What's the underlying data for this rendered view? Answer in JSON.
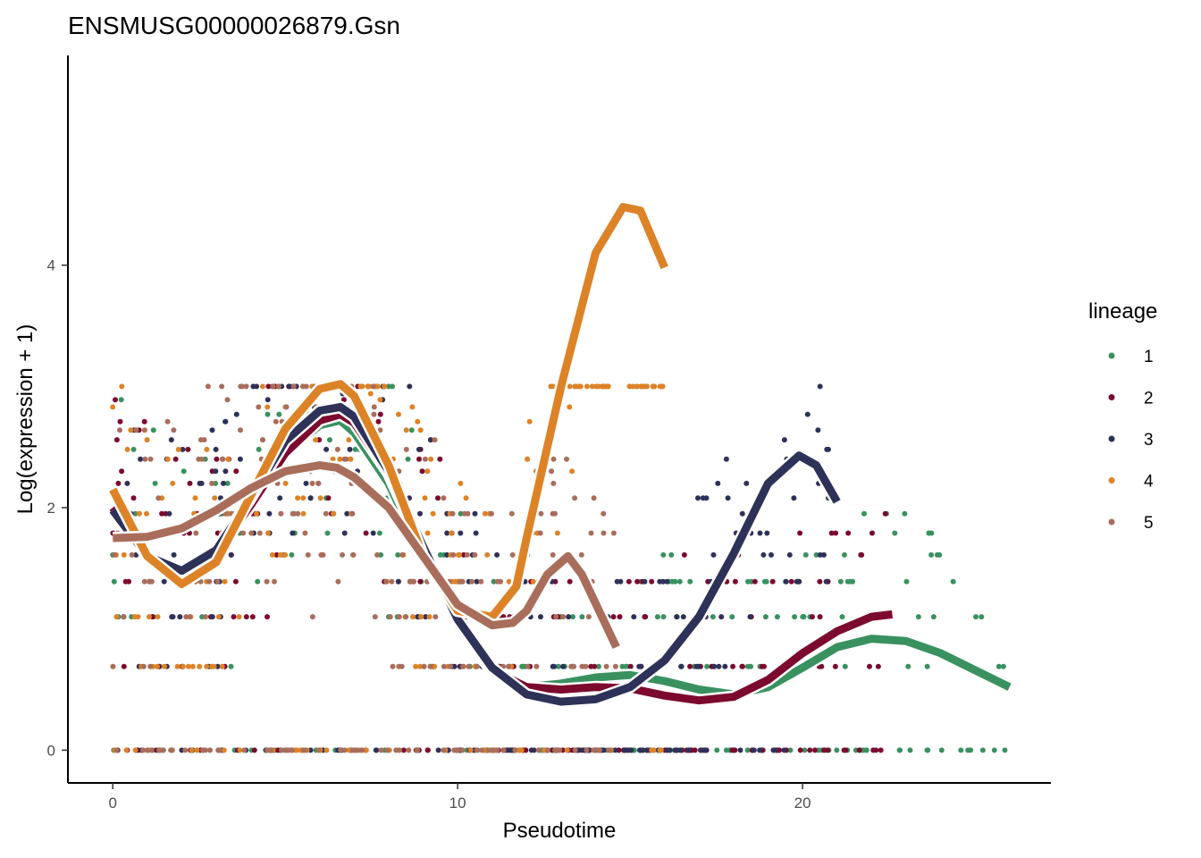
{
  "chart_data": {
    "type": "scatter",
    "title": "ENSMUSG00000026879.Gsn",
    "xlabel": "Pseudotime",
    "ylabel": "Log(expression + 1)",
    "xlim": [
      -1.3,
      27.2
    ],
    "ylim": [
      -0.27,
      5.73
    ],
    "x_ticks": [
      0,
      10,
      20
    ],
    "y_ticks": [
      0,
      2,
      4
    ],
    "grid": false,
    "legend": {
      "title": "lineage",
      "position": "right",
      "entries": [
        "1",
        "2",
        "3",
        "4",
        "5"
      ]
    },
    "expression_levels": [
      0,
      0.69,
      1.1,
      1.39,
      1.61,
      1.79,
      1.95,
      2.08,
      2.2,
      2.3,
      2.4,
      2.48,
      2.56,
      2.64,
      2.71,
      2.77,
      2.83,
      2.89,
      2.94,
      3.0
    ],
    "series": [
      {
        "name": "1",
        "color": "#3a9160",
        "x_range": [
          0,
          26
        ],
        "smooth": {
          "x": [
            0,
            1,
            2,
            3,
            4,
            5,
            6,
            6.6,
            7,
            8,
            9,
            10,
            11,
            12,
            13,
            14,
            15,
            16,
            17,
            18,
            19,
            20,
            21,
            22,
            23,
            24,
            25,
            26
          ],
          "y": [
            2.0,
            1.62,
            1.47,
            1.62,
            2.02,
            2.45,
            2.68,
            2.72,
            2.62,
            2.2,
            1.6,
            1.02,
            0.65,
            0.52,
            0.55,
            0.6,
            0.62,
            0.57,
            0.5,
            0.46,
            0.52,
            0.68,
            0.85,
            0.92,
            0.9,
            0.8,
            0.66,
            0.52
          ]
        }
      },
      {
        "name": "2",
        "color": "#7c0a2e",
        "x_range": [
          0,
          22.6
        ],
        "smooth": {
          "x": [
            0,
            1,
            2,
            3,
            4,
            5,
            6,
            6.6,
            7,
            8,
            9,
            10,
            11,
            12,
            13,
            14,
            15,
            16,
            17,
            18,
            19,
            20,
            21,
            22,
            22.6
          ],
          "y": [
            2.0,
            1.62,
            1.47,
            1.62,
            2.02,
            2.45,
            2.72,
            2.77,
            2.7,
            2.28,
            1.65,
            1.05,
            0.66,
            0.52,
            0.5,
            0.52,
            0.51,
            0.45,
            0.41,
            0.44,
            0.58,
            0.8,
            0.98,
            1.1,
            1.12
          ]
        }
      },
      {
        "name": "3",
        "color": "#2e3158",
        "x_range": [
          0,
          21
        ],
        "smooth": {
          "x": [
            0,
            1,
            2,
            3,
            4,
            5,
            6,
            6.6,
            7,
            8,
            9,
            10,
            11,
            12,
            13,
            14,
            15,
            16,
            17,
            18,
            19,
            19.9,
            20.4,
            21
          ],
          "y": [
            1.98,
            1.6,
            1.48,
            1.65,
            2.08,
            2.55,
            2.8,
            2.83,
            2.75,
            2.3,
            1.68,
            1.08,
            0.68,
            0.46,
            0.4,
            0.42,
            0.52,
            0.74,
            1.1,
            1.62,
            2.2,
            2.43,
            2.35,
            2.05
          ]
        }
      },
      {
        "name": "4",
        "color": "#dd8327",
        "x_range": [
          0,
          16
        ],
        "smooth": {
          "x": [
            0,
            1,
            2,
            3,
            4,
            5,
            6,
            6.6,
            7,
            8,
            9,
            10,
            11,
            11.7,
            12,
            13,
            14,
            14.8,
            15.3,
            16
          ],
          "y": [
            2.15,
            1.6,
            1.37,
            1.55,
            2.1,
            2.65,
            2.98,
            3.02,
            2.92,
            2.35,
            1.6,
            1.15,
            1.1,
            1.35,
            1.75,
            3.0,
            4.1,
            4.48,
            4.45,
            3.98
          ]
        }
      },
      {
        "name": "5",
        "color": "#a96e5b",
        "x_range": [
          0,
          14.6
        ],
        "smooth": {
          "x": [
            0,
            1,
            2,
            3,
            4,
            5,
            6,
            6.5,
            7,
            8,
            9,
            10,
            11,
            11.6,
            12,
            12.6,
            13.2,
            13.6,
            14.6
          ],
          "y": [
            1.75,
            1.76,
            1.83,
            1.98,
            2.16,
            2.3,
            2.35,
            2.33,
            2.25,
            2.0,
            1.6,
            1.2,
            1.03,
            1.05,
            1.15,
            1.45,
            1.6,
            1.45,
            0.85
          ]
        }
      }
    ]
  }
}
